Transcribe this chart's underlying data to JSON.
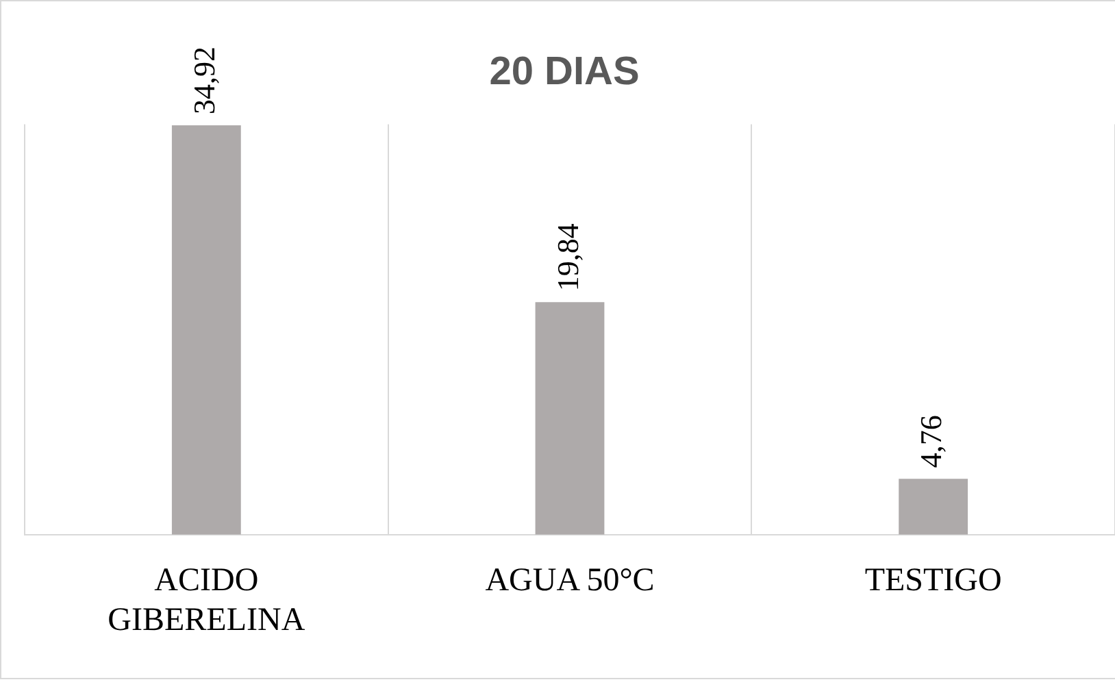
{
  "chart_data": {
    "type": "bar",
    "title": "20 DIAS",
    "categories": [
      "ACIDO GIBERELINA",
      "AGUA 50°C",
      "TESTIGO"
    ],
    "values": [
      34.92,
      19.84,
      4.76
    ],
    "value_labels": [
      "34,92",
      "19,84",
      "4,76"
    ],
    "color": "#aeaaaa",
    "grid": "x",
    "legend": false
  }
}
